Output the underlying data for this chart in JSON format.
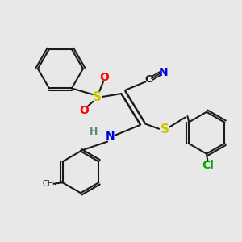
{
  "bg_color": "#e8e8e8",
  "bond_color": "#1a1a1a",
  "S_color": "#c8c800",
  "O_color": "#ff0000",
  "N_color": "#0000dd",
  "C_color": "#1a1a1a",
  "Cl_color": "#00aa00",
  "H_color": "#558888",
  "lw": 1.5,
  "fs": 9,
  "figsize": [
    3.0,
    3.0
  ],
  "dpi": 100,
  "xlim": [
    0,
    10
  ],
  "ylim": [
    0,
    10
  ]
}
